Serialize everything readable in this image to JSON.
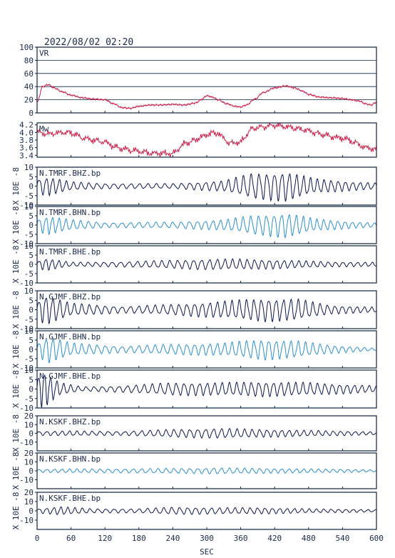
{
  "chart_data": {
    "title": "2022/08/02 02:20",
    "type": "line",
    "xlabel": "SEC",
    "xlim": [
      0,
      600
    ],
    "xticks": [
      0,
      60,
      120,
      180,
      240,
      300,
      360,
      420,
      480,
      540,
      600
    ],
    "xticklabels": [
      "0",
      "60",
      "120",
      "180",
      "240",
      "300",
      "360",
      "420",
      "480",
      "540",
      "600"
    ],
    "colors": {
      "vr": "#cc1a44",
      "mw": "#cc1a44",
      "dark": "#0a1650",
      "light": "#2a8fd0",
      "frame": "#0d2340"
    },
    "panels": [
      {
        "label": "VR",
        "ylabel": "",
        "color": "#cc1a44",
        "grid": true,
        "ylim": [
          0,
          100
        ],
        "yticks": [
          0,
          20,
          40,
          60,
          80,
          100
        ],
        "series": {
          "x": [
            0,
            10,
            20,
            30,
            45,
            60,
            80,
            100,
            120,
            135,
            150,
            165,
            180,
            200,
            220,
            240,
            260,
            280,
            290,
            300,
            310,
            320,
            335,
            350,
            360,
            370,
            385,
            400,
            420,
            440,
            455,
            470,
            480,
            500,
            520,
            540,
            555,
            570,
            580,
            590,
            600
          ],
          "y": [
            16,
            40,
            43,
            38,
            32,
            27,
            23,
            21,
            20,
            14,
            8,
            7,
            10,
            12,
            12,
            13,
            12,
            15,
            20,
            26,
            24,
            20,
            14,
            10,
            9,
            12,
            21,
            31,
            38,
            41,
            38,
            33,
            28,
            24,
            23,
            22,
            20,
            18,
            14,
            12,
            16
          ]
        }
      },
      {
        "label": "Mw",
        "ylabel": "",
        "color": "#cc1a44",
        "grid": false,
        "ylim": [
          3.35,
          4.25
        ],
        "yticks": [
          3.4,
          3.6,
          3.8,
          4.0,
          4.2
        ],
        "yticklabels": [
          "3.4",
          "3.6",
          "3.8",
          "4.0",
          "4.2"
        ],
        "series": {
          "x": [
            0,
            20,
            40,
            60,
            80,
            100,
            120,
            140,
            160,
            180,
            200,
            220,
            240,
            260,
            280,
            300,
            320,
            340,
            360,
            380,
            400,
            420,
            440,
            460,
            480,
            500,
            520,
            540,
            560,
            580,
            600
          ],
          "y": [
            4.0,
            3.95,
            4.0,
            4.0,
            3.85,
            3.8,
            3.75,
            3.6,
            3.55,
            3.5,
            3.45,
            3.45,
            3.45,
            3.7,
            3.8,
            3.95,
            4.0,
            3.7,
            3.75,
            4.1,
            4.15,
            4.2,
            4.15,
            4.1,
            4.05,
            3.95,
            3.9,
            3.85,
            3.75,
            3.6,
            3.55
          ]
        }
      },
      {
        "label": "N.TMRF.BHZ.bp",
        "ylabel": "X 10E -8",
        "color": "#0a1650",
        "grid": false,
        "ylim": [
          -10,
          10
        ],
        "yticks": [
          -10,
          -5,
          0,
          5,
          10
        ],
        "wave": [
          [
            0,
            3.5,
            15
          ],
          [
            20,
            4.5,
            11
          ],
          [
            60,
            2,
            13
          ],
          [
            120,
            1.2,
            15
          ],
          [
            240,
            1.2,
            15
          ],
          [
            330,
            2.5,
            13
          ],
          [
            380,
            6,
            14
          ],
          [
            440,
            7,
            13
          ],
          [
            490,
            3.5,
            12
          ],
          [
            560,
            2,
            13
          ],
          [
            600,
            1.5,
            13
          ]
        ]
      },
      {
        "label": "N.TMRF.BHN.bp",
        "ylabel": "X 10E -8",
        "color": "#2a8fd0",
        "grid": false,
        "ylim": [
          -10,
          10
        ],
        "yticks": [
          -10,
          -5,
          0,
          5,
          10
        ],
        "wave": [
          [
            0,
            3,
            14
          ],
          [
            20,
            4.5,
            11
          ],
          [
            60,
            2.5,
            13
          ],
          [
            120,
            1.2,
            15
          ],
          [
            240,
            1.5,
            15
          ],
          [
            330,
            2.5,
            13
          ],
          [
            380,
            4.5,
            14
          ],
          [
            440,
            6,
            13
          ],
          [
            490,
            3,
            12
          ],
          [
            560,
            1.5,
            13
          ],
          [
            600,
            1,
            13
          ]
        ]
      },
      {
        "label": "N.TMRF.BHE.bp",
        "ylabel": "X 10E -8",
        "color": "#0a1650",
        "grid": false,
        "ylim": [
          -10,
          10
        ],
        "yticks": [
          -10,
          -5,
          0,
          5,
          10
        ],
        "wave": [
          [
            0,
            1.5,
            14
          ],
          [
            15,
            3,
            11
          ],
          [
            60,
            1,
            13
          ],
          [
            150,
            1.2,
            15
          ],
          [
            240,
            2,
            14
          ],
          [
            300,
            2.5,
            14
          ],
          [
            360,
            2.5,
            13
          ],
          [
            440,
            2,
            13
          ],
          [
            520,
            1.2,
            13
          ],
          [
            600,
            1,
            13
          ]
        ]
      },
      {
        "label": "N.GJMF.BHZ.bp",
        "ylabel": "X 10E -8",
        "color": "#0a1650",
        "grid": false,
        "ylim": [
          -10,
          10
        ],
        "yticks": [
          -10,
          -5,
          0,
          5,
          10
        ],
        "wave": [
          [
            0,
            4,
            13
          ],
          [
            15,
            7,
            12
          ],
          [
            60,
            3,
            13
          ],
          [
            150,
            1.5,
            15
          ],
          [
            240,
            2.5,
            14
          ],
          [
            330,
            4,
            13
          ],
          [
            400,
            5.5,
            13
          ],
          [
            460,
            5,
            13
          ],
          [
            520,
            2,
            13
          ],
          [
            600,
            1.2,
            13
          ]
        ]
      },
      {
        "label": "N.GJMF.BHN.bp",
        "ylabel": "X 10E -8",
        "color": "#2a8fd0",
        "grid": false,
        "ylim": [
          -10,
          10
        ],
        "yticks": [
          -10,
          -5,
          0,
          5,
          10
        ],
        "wave": [
          [
            0,
            3,
            13
          ],
          [
            20,
            6.5,
            12
          ],
          [
            60,
            3,
            13
          ],
          [
            150,
            1.5,
            15
          ],
          [
            240,
            2.5,
            14
          ],
          [
            330,
            3,
            13
          ],
          [
            400,
            5,
            13
          ],
          [
            460,
            4,
            13
          ],
          [
            520,
            2,
            13
          ],
          [
            600,
            0.5,
            13
          ]
        ]
      },
      {
        "label": "N.GJMF.BHE.bp",
        "ylabel": "X 10E -8",
        "color": "#0a1650",
        "grid": false,
        "ylim": [
          -10,
          10
        ],
        "yticks": [
          -10,
          -5,
          0,
          5,
          10
        ],
        "wave": [
          [
            0,
            6,
            11
          ],
          [
            10,
            9,
            10
          ],
          [
            40,
            3,
            12
          ],
          [
            80,
            1,
            14
          ],
          [
            150,
            1.5,
            15
          ],
          [
            240,
            3,
            14
          ],
          [
            330,
            3,
            13
          ],
          [
            400,
            3.5,
            13
          ],
          [
            480,
            3,
            13
          ],
          [
            560,
            2,
            13
          ],
          [
            600,
            1.5,
            13
          ]
        ]
      },
      {
        "label": "N.KSKF.BHZ.bp",
        "ylabel": "X 10E -8",
        "color": "#0a1650",
        "grid": false,
        "ylim": [
          -20,
          20
        ],
        "yticks": [
          -10,
          0,
          10,
          20
        ],
        "wave": [
          [
            0,
            2,
            14
          ],
          [
            60,
            2.5,
            13
          ],
          [
            150,
            2,
            15
          ],
          [
            240,
            4,
            14
          ],
          [
            320,
            5,
            14
          ],
          [
            400,
            4,
            13
          ],
          [
            480,
            3,
            13
          ],
          [
            560,
            2,
            13
          ],
          [
            600,
            1.5,
            13
          ]
        ]
      },
      {
        "label": "N.KSKF.BHN.bp",
        "ylabel": "X 10E -8",
        "color": "#2a8fd0",
        "grid": false,
        "ylim": [
          -20,
          20
        ],
        "yticks": [
          -10,
          0,
          10,
          20
        ],
        "wave": [
          [
            0,
            1.5,
            14
          ],
          [
            60,
            2,
            13
          ],
          [
            150,
            2,
            15
          ],
          [
            240,
            2.5,
            14
          ],
          [
            320,
            3,
            14
          ],
          [
            400,
            2.5,
            13
          ],
          [
            480,
            2,
            13
          ],
          [
            560,
            1.5,
            13
          ],
          [
            600,
            1,
            13
          ]
        ]
      },
      {
        "label": "N.KSKF.BHE.bp",
        "ylabel": "X 10E -8",
        "color": "#0a1650",
        "grid": false,
        "ylim": [
          -20,
          20
        ],
        "yticks": [
          -10,
          0,
          10,
          20
        ],
        "wave": [
          [
            0,
            2,
            14
          ],
          [
            40,
            4,
            12
          ],
          [
            100,
            2,
            14
          ],
          [
            180,
            2,
            15
          ],
          [
            240,
            3.5,
            14
          ],
          [
            320,
            3,
            14
          ],
          [
            400,
            3,
            13
          ],
          [
            480,
            2,
            13
          ],
          [
            560,
            1.5,
            13
          ],
          [
            600,
            1,
            13
          ]
        ]
      }
    ]
  }
}
